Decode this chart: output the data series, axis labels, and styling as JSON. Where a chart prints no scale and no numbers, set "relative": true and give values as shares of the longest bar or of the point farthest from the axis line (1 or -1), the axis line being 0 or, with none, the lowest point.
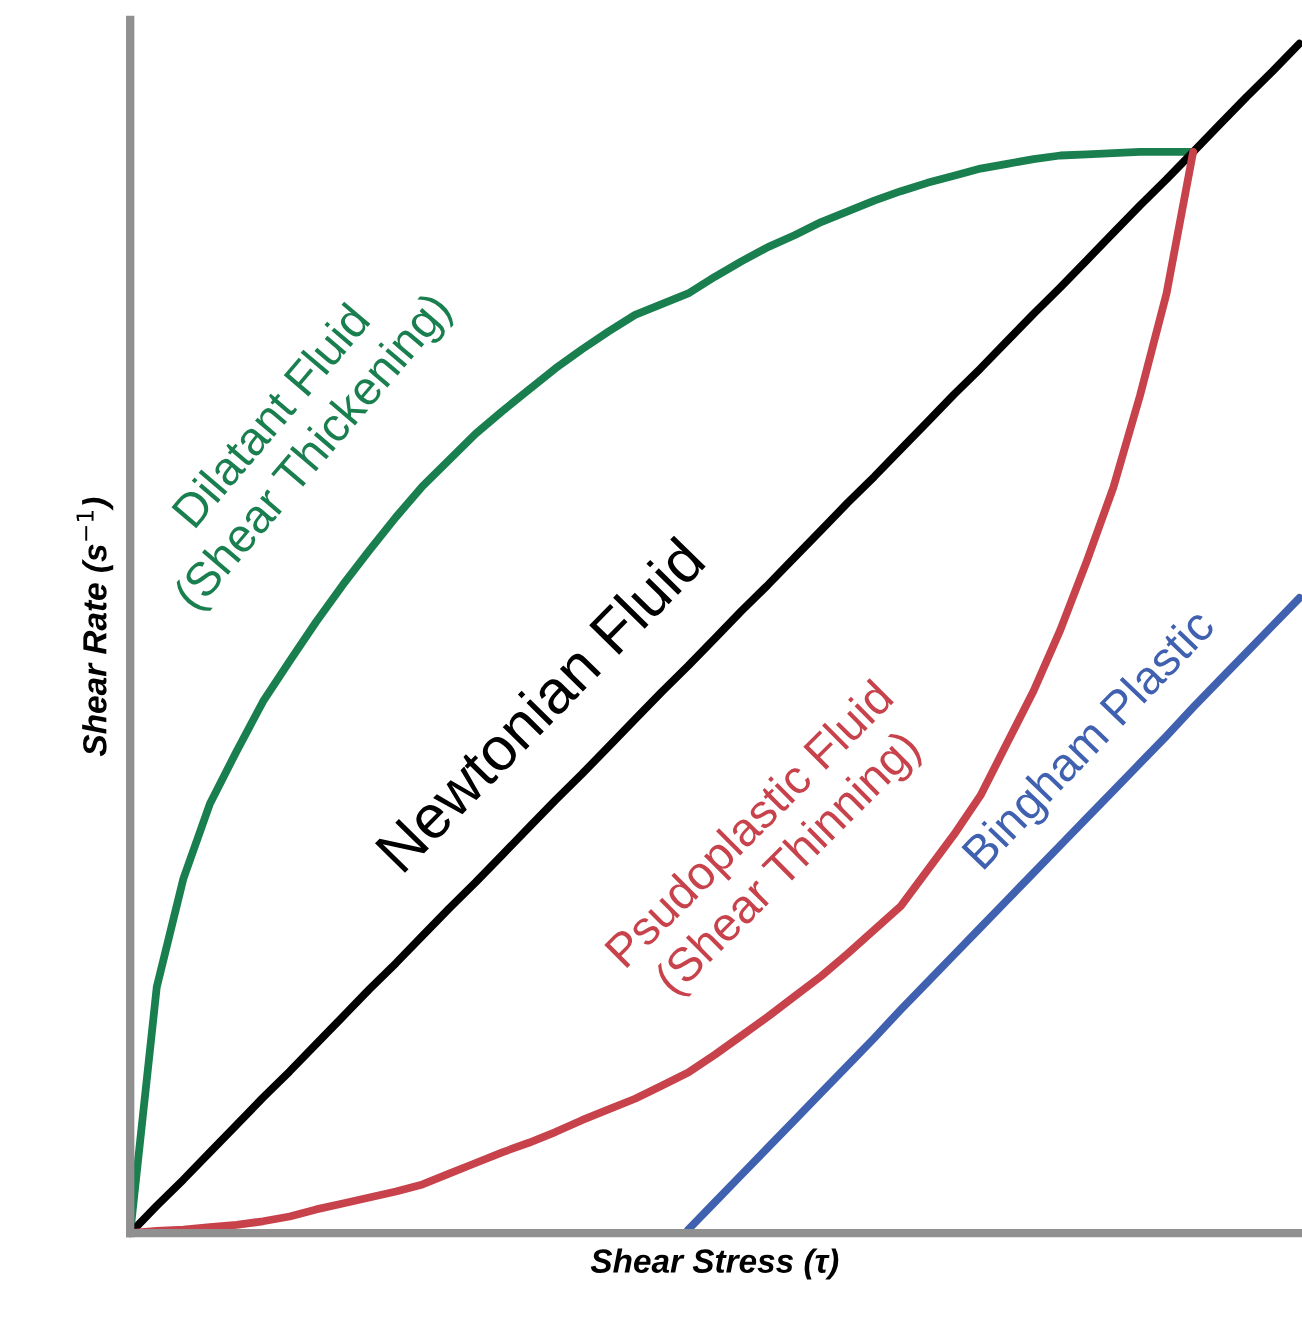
{
  "chart_data": {
    "type": "line",
    "relative": true,
    "xlabel": "Shear Stress (τ)",
    "ylabel": "Shear Rate (s$^{−1}$)",
    "categories": [
      null,
      null,
      null,
      null,
      null,
      null,
      null,
      null,
      null,
      null,
      null,
      null,
      null,
      null,
      null,
      null,
      null,
      null,
      null,
      null,
      null,
      null,
      null,
      null,
      null,
      null,
      null,
      null,
      null,
      null,
      null,
      null,
      null,
      null,
      null,
      null,
      null,
      null,
      null,
      null,
      null,
      null,
      null,
      null,
      null
    ],
    "series": [
      {
        "name": "Dilatant Fluid\n(Shear Thickening)",
        "color": "#1a7f4f",
        "values": [
          0,
          0.207,
          0.298,
          0.361,
          0.405,
          0.447,
          0.481,
          0.514,
          0.545,
          0.574,
          0.602,
          0.628,
          0.65,
          0.672,
          0.691,
          0.709,
          0.727,
          0.743,
          0.758,
          0.772,
          0.781,
          0.79,
          0.804,
          0.817,
          0.829,
          0.839,
          0.85,
          0.859,
          0.868,
          0.876,
          0.883,
          0.889,
          0.895,
          0.899,
          0.903,
          0.906,
          0.907,
          0.908,
          0.909,
          0.909,
          0.909,
          null,
          null,
          null,
          null
        ]
      },
      {
        "name": "Newtonian Fluid",
        "color": "#000000",
        "values": [
          0,
          0.023,
          0.045,
          0.068,
          0.091,
          0.114,
          0.136,
          0.159,
          0.182,
          0.205,
          0.227,
          0.25,
          0.273,
          0.295,
          0.318,
          0.341,
          0.364,
          0.386,
          0.409,
          0.432,
          0.455,
          0.477,
          0.5,
          0.523,
          0.545,
          0.568,
          0.591,
          0.614,
          0.636,
          0.659,
          0.682,
          0.705,
          0.727,
          0.75,
          0.773,
          0.795,
          0.818,
          0.841,
          0.864,
          0.886,
          0.909,
          0.932,
          0.955,
          0.977,
          1
        ]
      },
      {
        "name": "Psudoplastic Fluid\n(Shear Thinning)",
        "color": "#c8424b",
        "values": [
          0,
          0.002,
          0.003,
          0.005,
          0.007,
          0.01,
          0.014,
          0.02,
          0.025,
          0.03,
          0.035,
          0.041,
          0.05,
          0.059,
          0.068,
          0.076,
          0.085,
          0.095,
          0.104,
          0.113,
          0.124,
          0.135,
          0.15,
          0.166,
          0.182,
          0.199,
          0.216,
          0.235,
          0.255,
          0.275,
          0.305,
          0.335,
          0.368,
          0.412,
          0.456,
          0.507,
          0.565,
          0.627,
          0.704,
          0.79,
          0.909,
          null,
          null,
          null,
          null
        ]
      },
      {
        "name": "Bingham Plastic",
        "color": "#4060b0",
        "values": [
          null,
          null,
          null,
          null,
          null,
          null,
          null,
          null,
          null,
          null,
          null,
          null,
          null,
          null,
          null,
          null,
          null,
          null,
          null,
          null,
          null,
          0.003,
          0.026,
          0.049,
          0.072,
          0.095,
          0.118,
          0.141,
          0.164,
          0.188,
          0.211,
          0.234,
          0.257,
          0.28,
          0.303,
          0.326,
          0.349,
          0.372,
          0.395,
          0.418,
          0.442,
          0.465,
          0.488,
          0.511,
          0.534
        ]
      }
    ]
  }
}
